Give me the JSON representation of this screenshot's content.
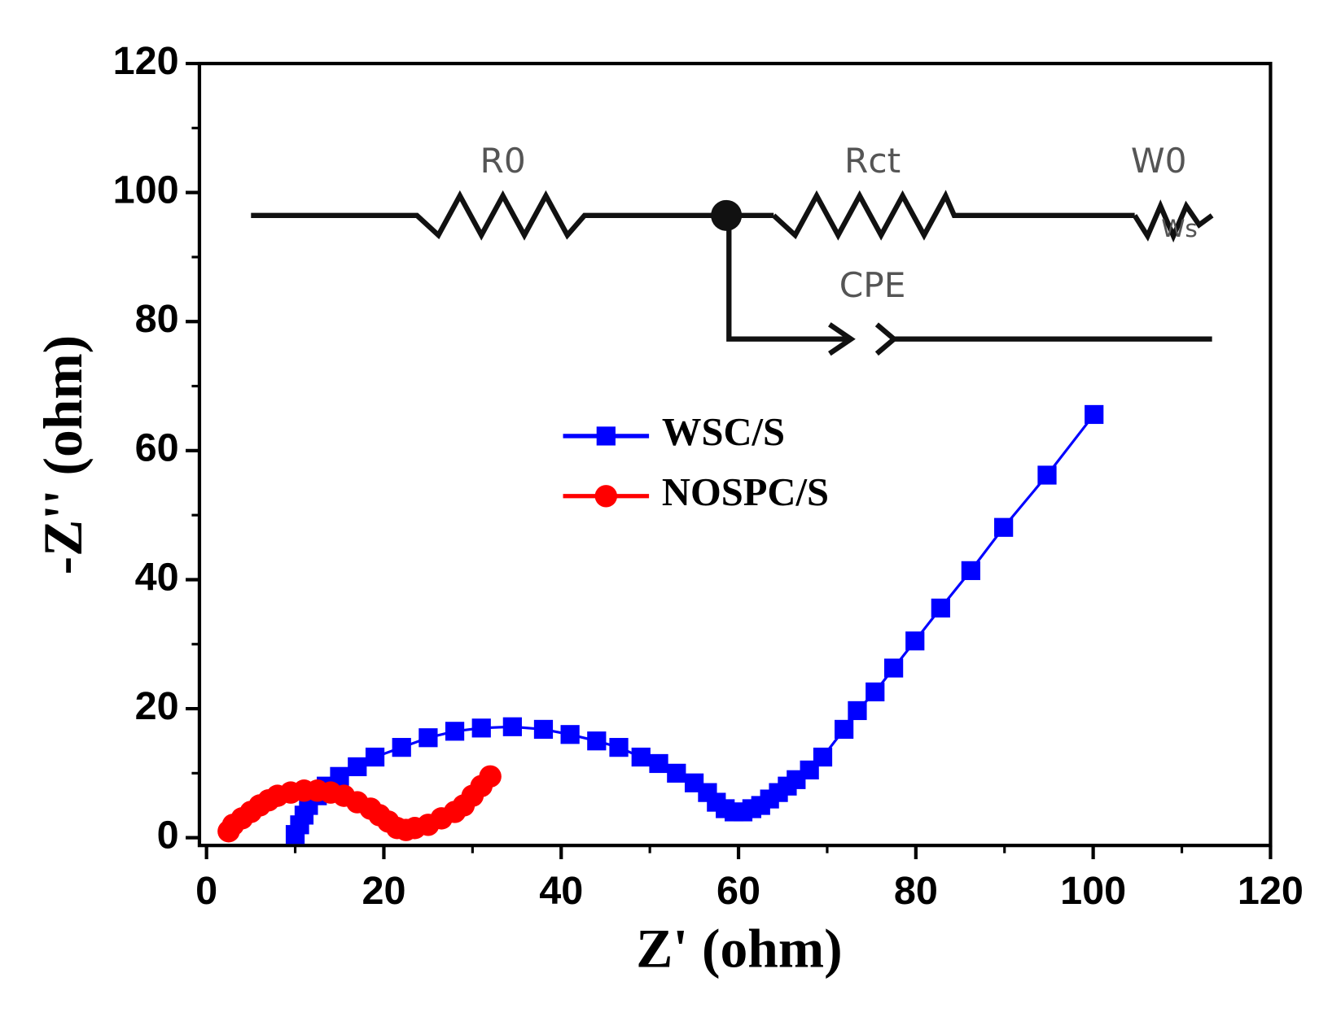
{
  "chart_data": {
    "type": "line",
    "xlabel": "Z' (ohm)",
    "ylabel": "-Z'' (ohm)",
    "xlim": [
      -0.8,
      120
    ],
    "ylim": [
      -1.2,
      120
    ],
    "xticks": [
      0,
      20,
      40,
      60,
      80,
      100,
      120
    ],
    "yticks": [
      0,
      20,
      40,
      60,
      80,
      100,
      120
    ],
    "legend": "upper center",
    "annotations": [
      "R0",
      "Rct",
      "W0",
      "CPE",
      "Ws"
    ],
    "series": [
      {
        "name": "WSC/S",
        "color": "#0000ff",
        "marker": "square",
        "x": [
          10,
          10.5,
          11,
          11.5,
          12.5,
          13.5,
          15,
          17,
          19,
          22,
          25,
          28,
          31,
          34.5,
          38,
          41,
          44,
          46.5,
          49,
          51,
          53,
          55,
          56.5,
          57.5,
          58.5,
          59.5,
          60.5,
          61.5,
          62.5,
          63.5,
          64.5,
          65.5,
          66.5,
          68,
          69.5,
          71.9,
          73.4,
          75.4,
          77.5,
          79.9,
          82.8,
          86.2,
          89.9,
          94.8,
          100.1
        ],
        "values": [
          0.5,
          2,
          3.5,
          5,
          6.5,
          8,
          9.5,
          11,
          12.5,
          14,
          15.5,
          16.5,
          17,
          17.2,
          16.8,
          16,
          15,
          14,
          12.5,
          11.5,
          10,
          8.5,
          7,
          5.5,
          4.5,
          4,
          4,
          4.5,
          5,
          6,
          7,
          8,
          9,
          10.5,
          12.5,
          16.8,
          19.7,
          22.6,
          26.3,
          30.5,
          35.6,
          41.4,
          48.1,
          56.2,
          65.6
        ]
      },
      {
        "name": "NOSPC/S",
        "color": "#ff0000",
        "marker": "circle",
        "x": [
          2.5,
          3,
          4,
          5,
          6,
          7,
          8,
          9.5,
          11,
          12.5,
          14,
          15.5,
          17,
          18.5,
          19.5,
          20.5,
          21.5,
          22.5,
          23.5,
          25,
          26.5,
          28,
          29,
          30,
          31,
          32
        ],
        "values": [
          1,
          2,
          3,
          4,
          5,
          5.8,
          6.5,
          7,
          7.3,
          7.3,
          7,
          6.5,
          5.5,
          4.5,
          3.5,
          2.5,
          1.5,
          1.2,
          1.5,
          2,
          3,
          4,
          5,
          6.5,
          8,
          9.5
        ]
      }
    ]
  }
}
